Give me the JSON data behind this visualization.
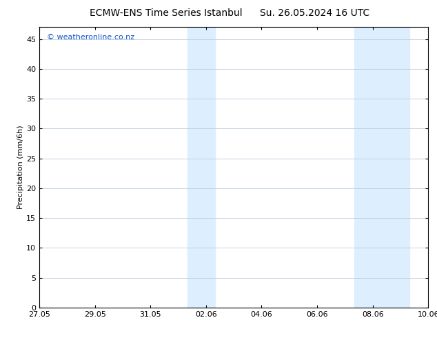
{
  "title_left": "ECMW-ENS Time Series Istanbul",
  "title_right": "Su. 26.05.2024 16 UTC",
  "ylabel": "Precipitation (mm/6h)",
  "bg_color": "#ffffff",
  "plot_bg_color": "#ffffff",
  "grid_color": "#bbccdd",
  "tick_color": "#000000",
  "shaded_bands": [
    {
      "xmin": 5.33,
      "xmax": 6.33,
      "color": "#ddeeff"
    },
    {
      "xmin": 11.33,
      "xmax": 13.33,
      "color": "#ddeeff"
    }
  ],
  "x_tick_labels": [
    "27.05",
    "29.05",
    "31.05",
    "02.06",
    "04.06",
    "06.06",
    "08.06",
    "10.06"
  ],
  "x_tick_positions": [
    0,
    2,
    4,
    6,
    8,
    10,
    12,
    14
  ],
  "ylim": [
    0,
    47
  ],
  "xlim": [
    0,
    14
  ],
  "yticks": [
    0,
    5,
    10,
    15,
    20,
    25,
    30,
    35,
    40,
    45
  ],
  "watermark_text": "© weatheronline.co.nz",
  "watermark_color": "#1155cc",
  "watermark_fontsize": 8,
  "title_fontsize": 10,
  "axis_fontsize": 8,
  "ylabel_fontsize": 8,
  "border_color": "#000000"
}
